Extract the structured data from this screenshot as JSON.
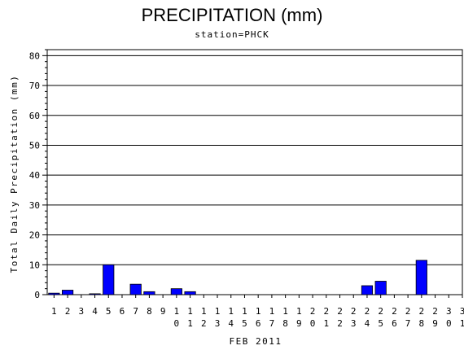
{
  "title": "PRECIPITATION (mm)",
  "subtitle": "station=PHCK",
  "chart_data": {
    "type": "bar",
    "xlabel": "FEB 2011",
    "ylabel": "Total Daily Precipitation (mm)",
    "ylim": [
      0,
      82
    ],
    "yticks": [
      0,
      10,
      20,
      30,
      40,
      50,
      60,
      70,
      80
    ],
    "grid": true,
    "bar_color": "#0000ff",
    "categories": [
      "1",
      "2",
      "3",
      "4",
      "5",
      "6",
      "7",
      "8",
      "9",
      "10",
      "11",
      "12",
      "13",
      "14",
      "15",
      "16",
      "17",
      "18",
      "19",
      "20",
      "21",
      "22",
      "23",
      "24",
      "25",
      "26",
      "27",
      "28",
      "29",
      "30",
      "31"
    ],
    "values": [
      0.5,
      1.5,
      0,
      0.3,
      10,
      0,
      3.5,
      1,
      0,
      2,
      1,
      0,
      0,
      0,
      0,
      0,
      0,
      0,
      0,
      0,
      0,
      0,
      0,
      3,
      4.5,
      0,
      0,
      11.5,
      0,
      0,
      0
    ]
  }
}
